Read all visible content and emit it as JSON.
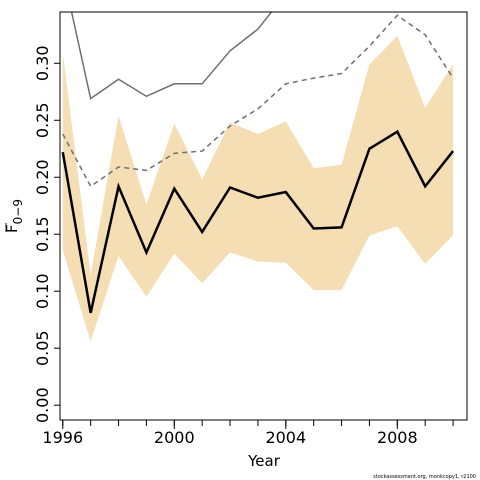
{
  "chart_data": {
    "type": "line",
    "xlabel": "Year",
    "ylabel": "F",
    "ylabel_sub": "0−9",
    "credit": "stockassessment.org, monkcopy1, r2100",
    "xlim": [
      1995.9,
      2010.5
    ],
    "ylim": [
      -0.013,
      0.345
    ],
    "x_ticks": [
      1996,
      2000,
      2004,
      2008
    ],
    "x_minor_ticks": [
      1996,
      1997,
      1998,
      1999,
      2000,
      2001,
      2002,
      2003,
      2004,
      2005,
      2006,
      2007,
      2008,
      2009,
      2010
    ],
    "y_ticks": [
      "0.00",
      "0.05",
      "0.10",
      "0.15",
      "0.20",
      "0.25",
      "0.30"
    ],
    "years": [
      1996,
      1997,
      1998,
      1999,
      2000,
      2001,
      2002,
      2003,
      2004,
      2005,
      2006,
      2007,
      2008,
      2009,
      2010
    ],
    "colors": {
      "band": "#f5deb3",
      "estimate": "#000000",
      "previous": "#6f6f6f",
      "axis": "#000000"
    },
    "series": [
      {
        "role": "confidence-band",
        "lower": [
          0.136,
          0.056,
          0.131,
          0.095,
          0.133,
          0.107,
          0.134,
          0.126,
          0.125,
          0.101,
          0.101,
          0.149,
          0.157,
          0.124,
          0.149
        ],
        "upper": [
          0.309,
          0.114,
          0.254,
          0.176,
          0.247,
          0.198,
          0.248,
          0.238,
          0.249,
          0.208,
          0.211,
          0.299,
          0.324,
          0.261,
          0.299
        ]
      },
      {
        "role": "estimate",
        "values": [
          0.222,
          0.081,
          0.192,
          0.134,
          0.19,
          0.152,
          0.191,
          0.182,
          0.187,
          0.155,
          0.156,
          0.225,
          0.24,
          0.192,
          0.223
        ]
      },
      {
        "role": "previous-estimate",
        "style": "dashed",
        "values": [
          0.238,
          0.192,
          0.209,
          0.206,
          0.221,
          0.223,
          0.245,
          0.26,
          0.282,
          0.287,
          0.291,
          0.315,
          0.342,
          0.325,
          0.287
        ]
      },
      {
        "role": "previous-upper",
        "style": "solid",
        "values": [
          0.38,
          0.269,
          0.286,
          0.271,
          0.282,
          0.282,
          0.311,
          0.33,
          0.361,
          null,
          null,
          null,
          null,
          null,
          null
        ]
      }
    ]
  }
}
